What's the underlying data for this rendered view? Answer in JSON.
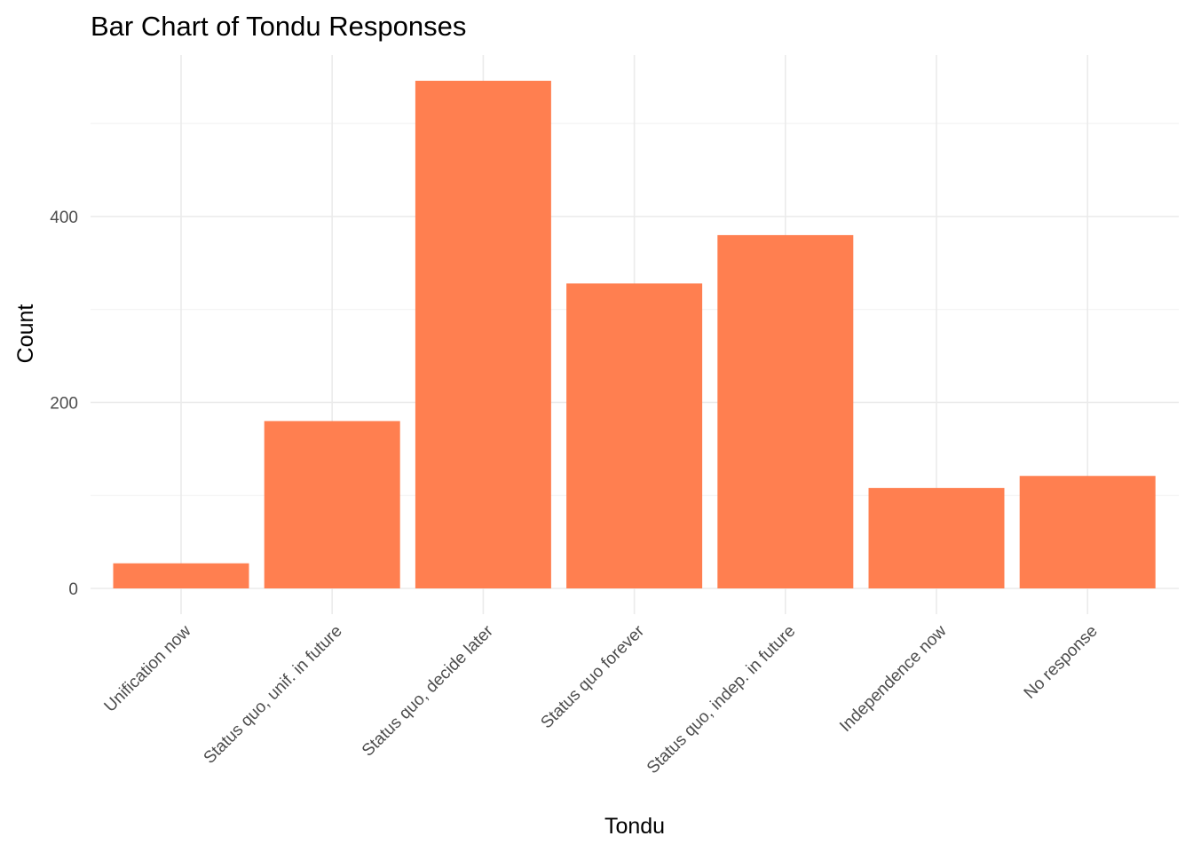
{
  "chart_data": {
    "type": "bar",
    "title": "Bar Chart of Tondu Responses",
    "xlabel": "Tondu",
    "ylabel": "Count",
    "categories": [
      "Unification now",
      "Status quo, unif. in future",
      "Status quo, decide later",
      "Status quo forever",
      "Status quo, indep. in future",
      "Independence now",
      "No response"
    ],
    "values": [
      27,
      180,
      546,
      328,
      380,
      108,
      121
    ],
    "ylim": [
      0,
      600
    ],
    "yticks": [
      0,
      200,
      400
    ],
    "ytick_labels": [
      "0",
      "200",
      "400"
    ],
    "bar_color": "#FF7F50",
    "grid": true,
    "legend": "none"
  }
}
